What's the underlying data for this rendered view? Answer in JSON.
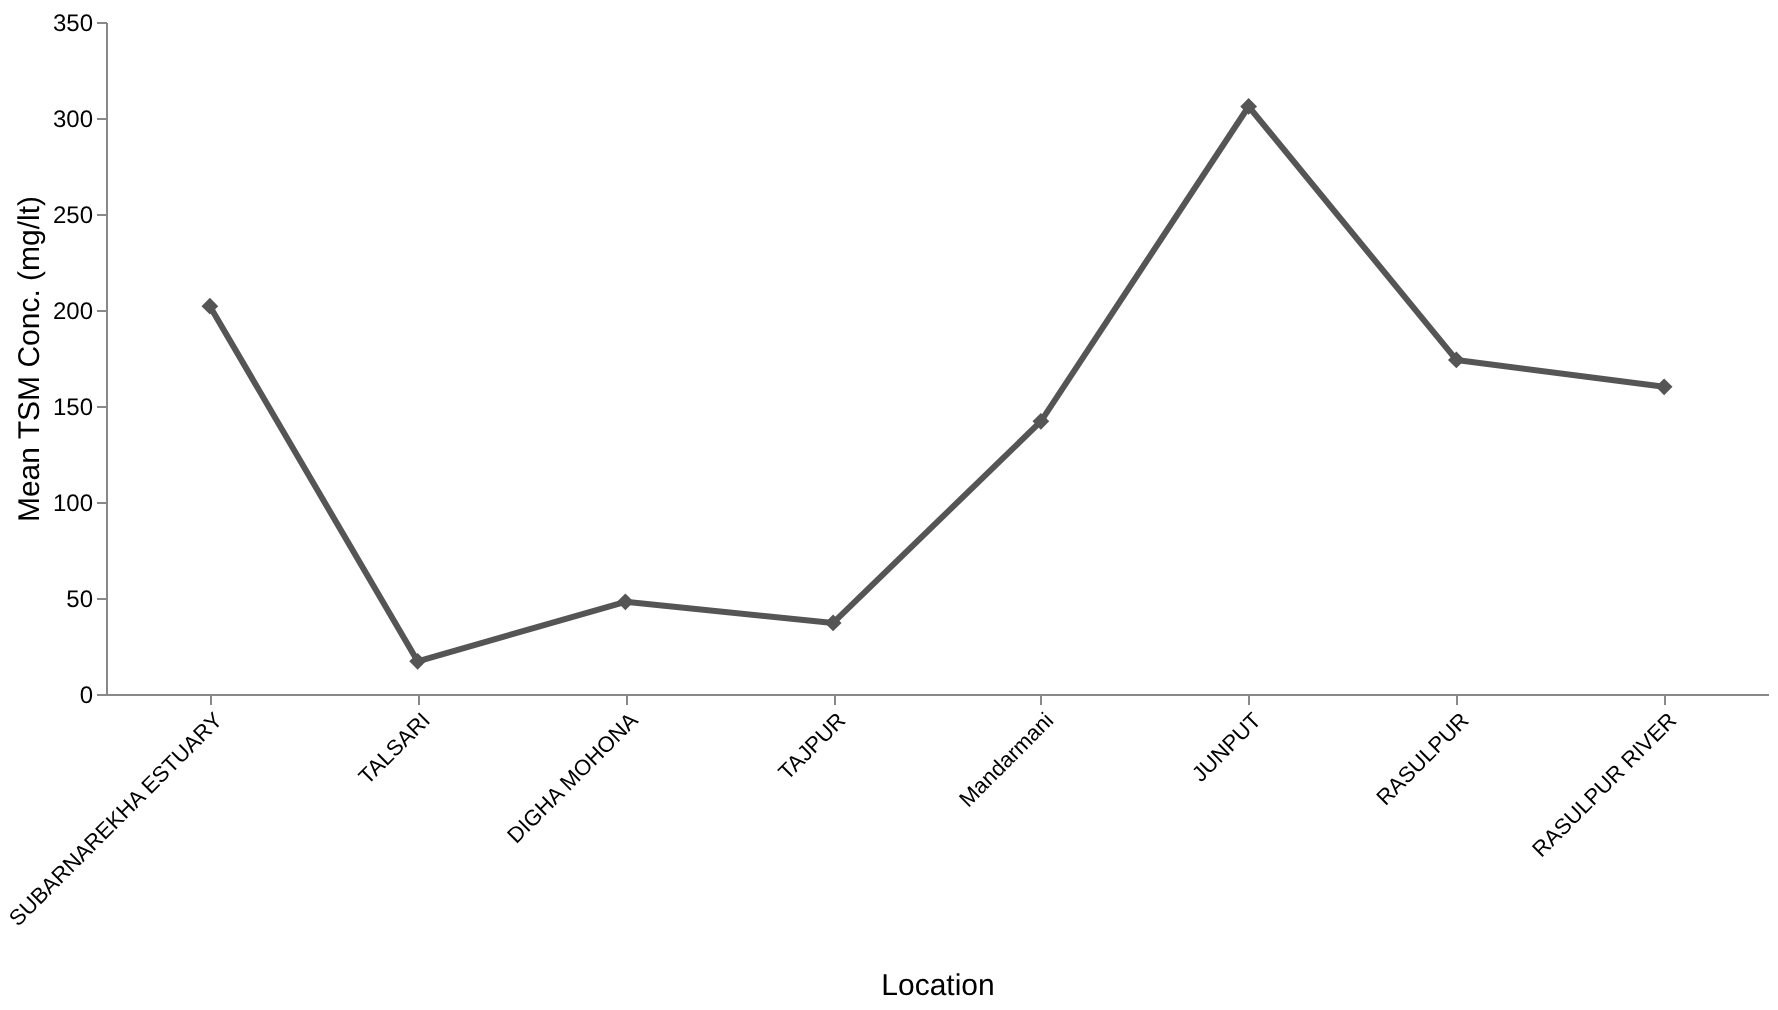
{
  "chart_data": {
    "type": "line",
    "xlabel": "Location",
    "ylabel": "Mean TSM Conc. (mg/lt)",
    "categories": [
      "SUBARNAREKHA ESTUARY",
      "TALSARI",
      "DIGHA MOHONA",
      "TAJPUR",
      "Mandarmani",
      "JUNPUT",
      "RASULPUR",
      "RASULPUR RIVER"
    ],
    "series": [
      {
        "color": "#555555",
        "values": [
          202,
          17,
          48,
          37,
          142,
          306,
          174,
          160
        ]
      }
    ],
    "ylim": [
      0,
      350
    ],
    "yticks": [
      0,
      50,
      100,
      150,
      200,
      250,
      300,
      350
    ],
    "grid": false,
    "marker": "diamond",
    "line_style": "solid"
  }
}
